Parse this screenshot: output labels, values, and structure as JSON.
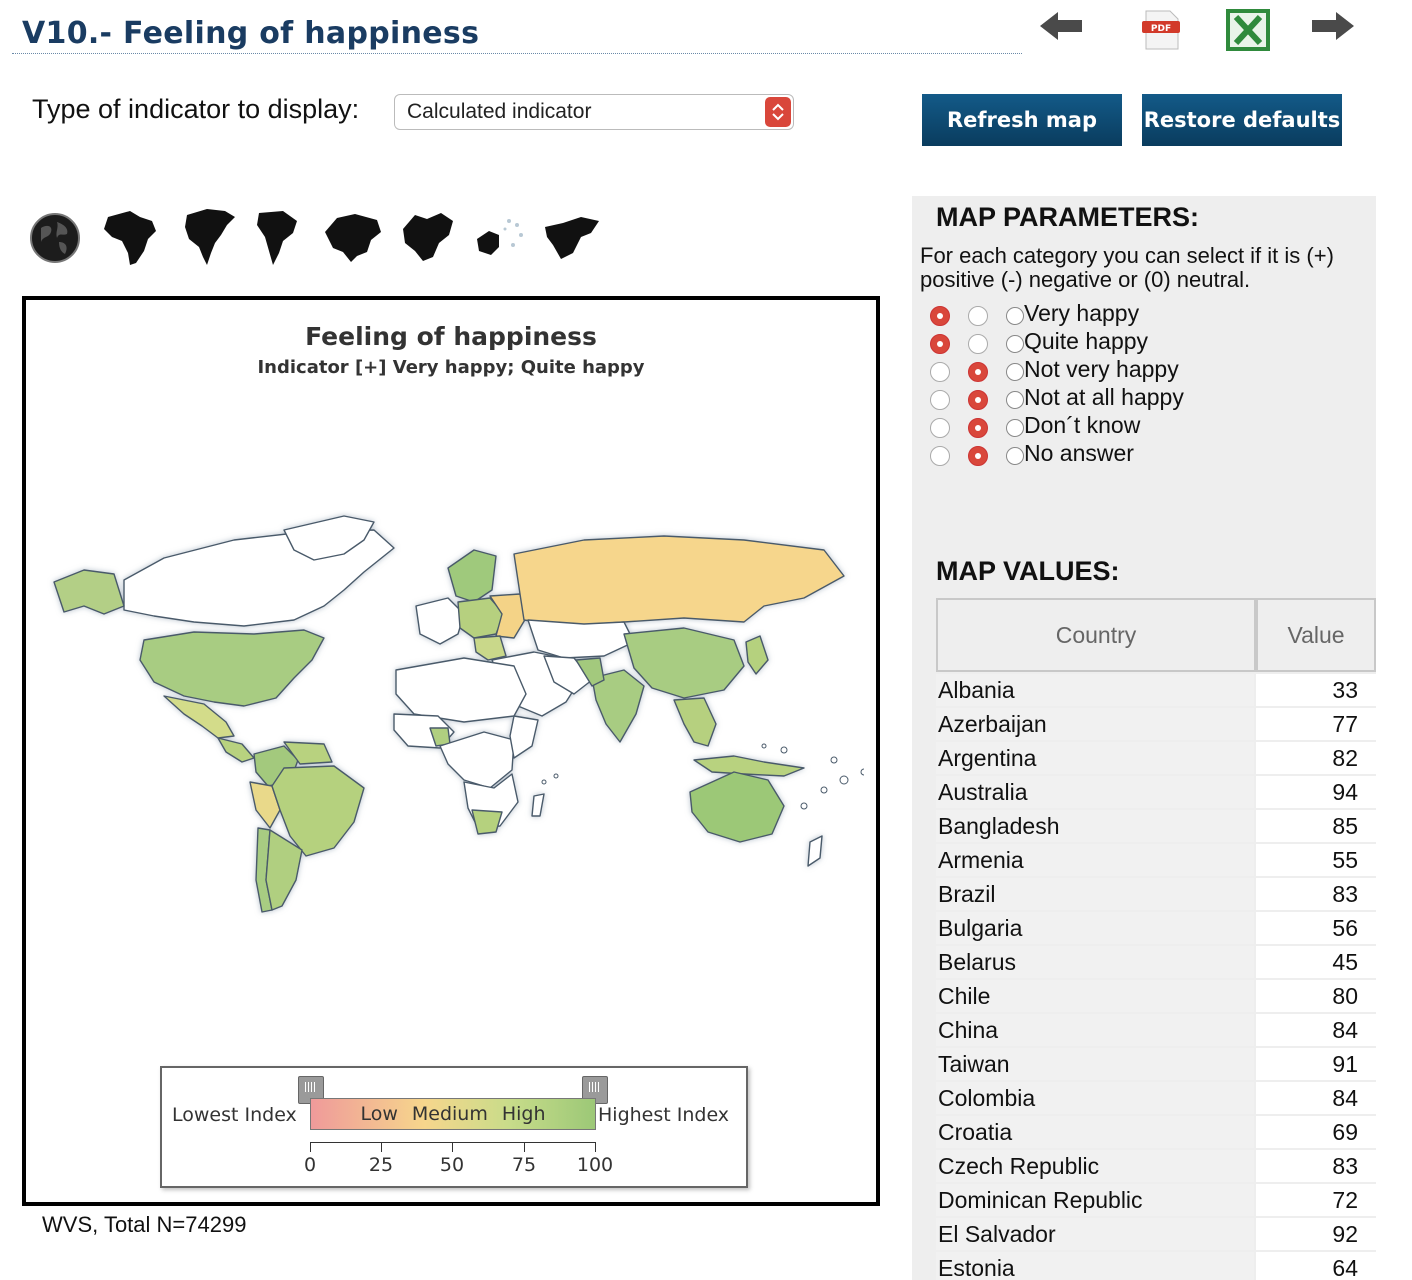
{
  "header": {
    "title": "V10.- Feeling of happiness",
    "icons": [
      "arrow-left-icon",
      "pdf-icon",
      "excel-icon",
      "arrow-right-icon"
    ]
  },
  "controls": {
    "indicator_label": "Type of indicator to display:",
    "indicator_selected": "Calculated indicator",
    "refresh_label": "Refresh map",
    "restore_label": "Restore defaults"
  },
  "regions": [
    "world",
    "africa",
    "north-america",
    "south-america",
    "asia",
    "europe",
    "oceania",
    "middle-east"
  ],
  "map": {
    "title": "Feeling of happiness",
    "subtitle": "Indicator [+] Very happy; Quite happy",
    "legend": {
      "lowest": "Lowest Index",
      "highest": "Highest Index",
      "low": "Low",
      "medium": "Medium",
      "high": "High",
      "ticks": [
        "0",
        "25",
        "50",
        "75",
        "100"
      ]
    },
    "colors": {
      "high": "#9cc877",
      "medium": "#f6d68c",
      "low": "#ef9a9a",
      "no_data": "#ffffff",
      "border": "#4a5a6a"
    }
  },
  "source_note": "WVS, Total N=74299",
  "parameters": {
    "heading": "MAP PARAMETERS:",
    "description": "For each category you can select if it is (+) positive (-) negative or (0) neutral.",
    "categories": [
      {
        "label": "Very happy",
        "selected": "positive"
      },
      {
        "label": "Quite happy",
        "selected": "positive"
      },
      {
        "label": "Not very happy",
        "selected": "negative"
      },
      {
        "label": "Not at all happy",
        "selected": "negative"
      },
      {
        "label": "Don´t know",
        "selected": "negative"
      },
      {
        "label": "No answer",
        "selected": "negative"
      }
    ]
  },
  "values": {
    "heading": "MAP VALUES:",
    "columns": [
      "Country",
      "Value"
    ],
    "rows": [
      {
        "country": "Albania",
        "value": "33"
      },
      {
        "country": "Azerbaijan",
        "value": "77"
      },
      {
        "country": "Argentina",
        "value": "82"
      },
      {
        "country": "Australia",
        "value": "94"
      },
      {
        "country": "Bangladesh",
        "value": "85"
      },
      {
        "country": "Armenia",
        "value": "55"
      },
      {
        "country": "Brazil",
        "value": "83"
      },
      {
        "country": "Bulgaria",
        "value": "56"
      },
      {
        "country": "Belarus",
        "value": "45"
      },
      {
        "country": "Chile",
        "value": "80"
      },
      {
        "country": "China",
        "value": "84"
      },
      {
        "country": "Taiwan",
        "value": "91"
      },
      {
        "country": "Colombia",
        "value": "84"
      },
      {
        "country": "Croatia",
        "value": "69"
      },
      {
        "country": "Czech Republic",
        "value": "83"
      },
      {
        "country": "Dominican Republic",
        "value": "72"
      },
      {
        "country": "El Salvador",
        "value": "92"
      },
      {
        "country": "Estonia",
        "value": "64"
      }
    ]
  }
}
